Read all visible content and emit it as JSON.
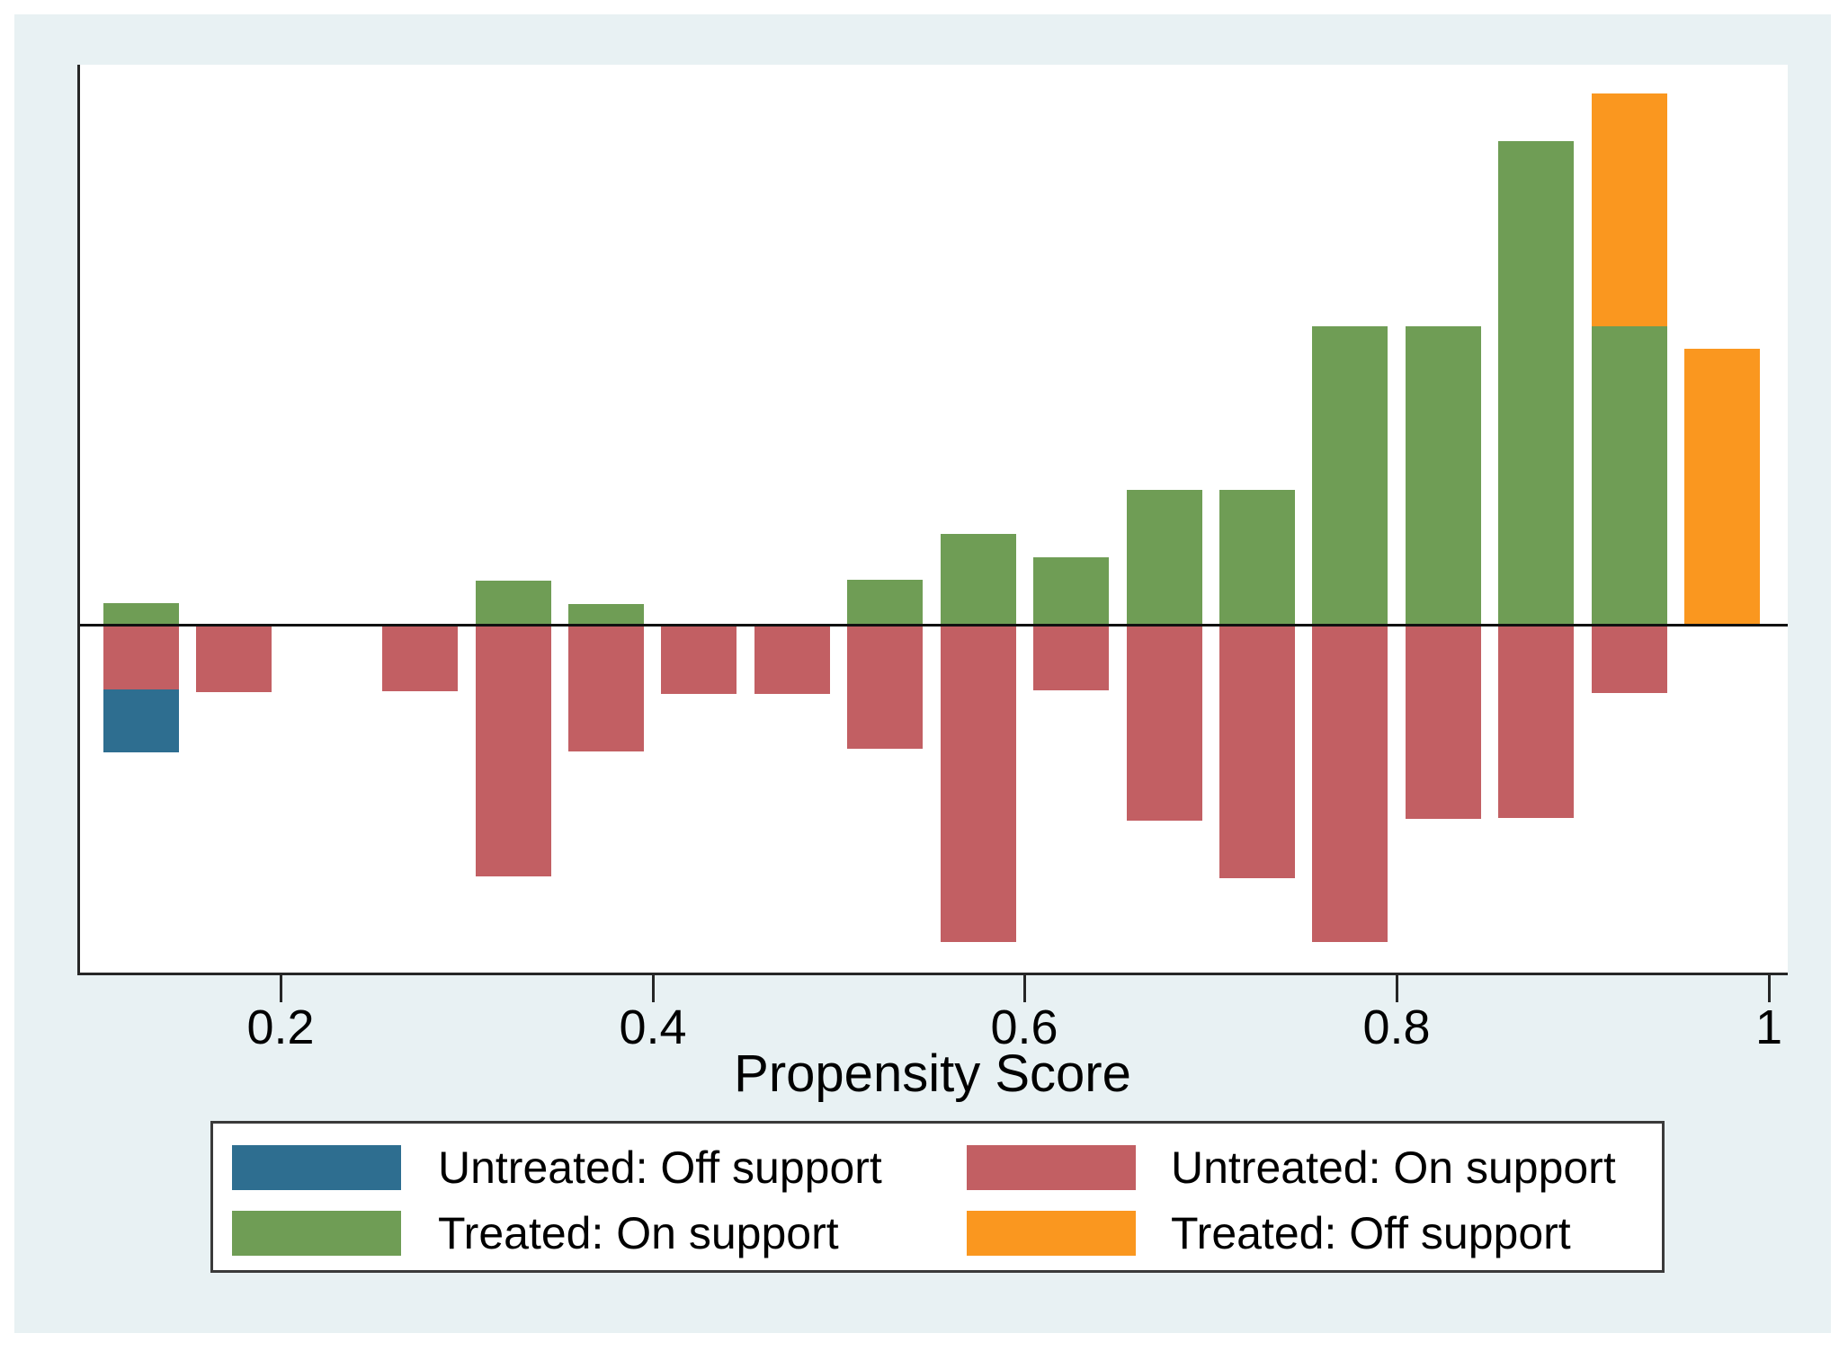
{
  "figure": {
    "background_color": "#ffffff",
    "panel_color": "#e8f1f3",
    "plot_background": "#ffffff",
    "axis_color": "#262626"
  },
  "x_axis": {
    "title": "Propensity Score",
    "tick_labels": [
      "0.2",
      "0.4",
      "0.6",
      "0.8",
      "1"
    ]
  },
  "legend": {
    "entries": [
      {
        "label": "Untreated: Off support",
        "series": "untreated_off",
        "color": "#2e6e90"
      },
      {
        "label": "Untreated: On support",
        "series": "untreated_on",
        "color": "#c25f63"
      },
      {
        "label": "Treated: On support",
        "series": "treated_on",
        "color": "#6f9d55"
      },
      {
        "label": "Treated: Off support",
        "series": "treated_off",
        "color": "#fa971f"
      }
    ]
  },
  "chart_data": {
    "type": "bar",
    "subtype": "propensity-score-overlap-histogram",
    "title": "",
    "xlabel": "Propensity Score",
    "x_ticks": [
      0.2,
      0.4,
      0.6,
      0.8,
      1.0
    ],
    "x_range_shown": [
      0.088,
      1.012
    ],
    "bin_width": 0.05,
    "orientation": "treated bars extend up from the baseline; untreated bars extend down; off-support segments stack beyond on-support segments",
    "units": "relative frequency (no y-axis drawn); segment values are bar lengths in image pixels",
    "series_colors": {
      "treated_on": "#6f9d55",
      "treated_off": "#fa971f",
      "untreated_on": "#c25f63",
      "untreated_off": "#2e6e90"
    },
    "bins": [
      {
        "center": 0.125,
        "treated_on": 25,
        "treated_off": 0,
        "untreated_on": 71,
        "untreated_off": 70
      },
      {
        "center": 0.175,
        "treated_on": 0,
        "treated_off": 0,
        "untreated_on": 74,
        "untreated_off": 0
      },
      {
        "center": 0.275,
        "treated_on": 0,
        "treated_off": 0,
        "untreated_on": 73,
        "untreated_off": 0
      },
      {
        "center": 0.325,
        "treated_on": 50,
        "treated_off": 0,
        "untreated_on": 279,
        "untreated_off": 0
      },
      {
        "center": 0.375,
        "treated_on": 24,
        "treated_off": 0,
        "untreated_on": 140,
        "untreated_off": 0
      },
      {
        "center": 0.425,
        "treated_on": 0,
        "treated_off": 0,
        "untreated_on": 76,
        "untreated_off": 0
      },
      {
        "center": 0.475,
        "treated_on": 0,
        "treated_off": 0,
        "untreated_on": 76,
        "untreated_off": 0
      },
      {
        "center": 0.525,
        "treated_on": 51,
        "treated_off": 0,
        "untreated_on": 137,
        "untreated_off": 0
      },
      {
        "center": 0.575,
        "treated_on": 102,
        "treated_off": 0,
        "untreated_on": 352,
        "untreated_off": 0
      },
      {
        "center": 0.625,
        "treated_on": 76,
        "treated_off": 0,
        "untreated_on": 72,
        "untreated_off": 0
      },
      {
        "center": 0.675,
        "treated_on": 151,
        "treated_off": 0,
        "untreated_on": 217,
        "untreated_off": 0
      },
      {
        "center": 0.725,
        "treated_on": 151,
        "treated_off": 0,
        "untreated_on": 281,
        "untreated_off": 0
      },
      {
        "center": 0.775,
        "treated_on": 333,
        "treated_off": 0,
        "untreated_on": 352,
        "untreated_off": 0
      },
      {
        "center": 0.825,
        "treated_on": 333,
        "treated_off": 0,
        "untreated_on": 215,
        "untreated_off": 0
      },
      {
        "center": 0.875,
        "treated_on": 539,
        "treated_off": 0,
        "untreated_on": 214,
        "untreated_off": 0
      },
      {
        "center": 0.925,
        "treated_on": 333,
        "treated_off": 259,
        "untreated_on": 75,
        "untreated_off": 0
      },
      {
        "center": 0.975,
        "treated_on": 0,
        "treated_off": 308,
        "untreated_on": 0,
        "untreated_off": 0
      }
    ]
  }
}
